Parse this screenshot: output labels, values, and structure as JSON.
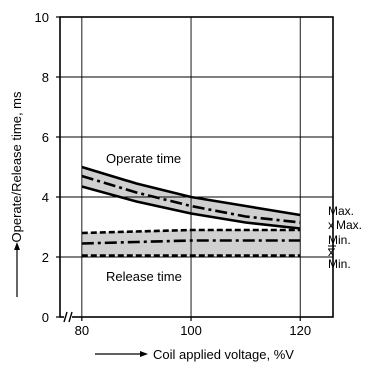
{
  "chart_data": {
    "type": "line",
    "ylabel": "Operate/Release time, ms",
    "xlabel": "Coil applied voltage, %V",
    "xlim": [
      76,
      126
    ],
    "ylim": [
      0,
      10
    ],
    "x_ticks": [
      80,
      100,
      120
    ],
    "y_ticks": [
      0,
      2,
      4,
      6,
      8,
      10
    ],
    "grid": true,
    "axis_break": "x",
    "band_labels": [
      "Operate time",
      "Release time"
    ],
    "series_labels": [
      "Max.",
      "x",
      "Max.",
      "Min.",
      "x",
      "Min."
    ],
    "series": [
      {
        "name": "Operate time Max.",
        "style": "solid",
        "x": [
          80,
          90,
          100,
          110,
          120
        ],
        "y": [
          5.0,
          4.45,
          4.0,
          3.7,
          3.4
        ]
      },
      {
        "name": "Operate time x",
        "style": "dash-dot",
        "x": [
          80,
          90,
          100,
          110,
          120
        ],
        "y": [
          4.7,
          4.15,
          3.7,
          3.35,
          3.15
        ]
      },
      {
        "name": "Operate time Min.",
        "style": "solid",
        "x": [
          80,
          90,
          100,
          110,
          120
        ],
        "y": [
          4.35,
          3.85,
          3.45,
          3.15,
          2.95
        ]
      },
      {
        "name": "Release time Max.",
        "style": "dashed",
        "x": [
          80,
          90,
          100,
          110,
          120
        ],
        "y": [
          2.8,
          2.85,
          2.9,
          2.9,
          2.9
        ]
      },
      {
        "name": "Release time x",
        "style": "dash-dot",
        "x": [
          80,
          90,
          100,
          110,
          120
        ],
        "y": [
          2.45,
          2.5,
          2.55,
          2.55,
          2.55
        ]
      },
      {
        "name": "Release time Min.",
        "style": "dashed",
        "x": [
          80,
          90,
          100,
          110,
          120
        ],
        "y": [
          2.05,
          2.05,
          2.05,
          2.05,
          2.05
        ]
      }
    ],
    "bands": [
      {
        "upper": "Operate time Max.",
        "lower": "Operate time Min.",
        "fill": "#d0d0d0"
      },
      {
        "upper": "Release time Max.",
        "lower": "Release time Min.",
        "fill": "#d0d0d0"
      }
    ]
  }
}
